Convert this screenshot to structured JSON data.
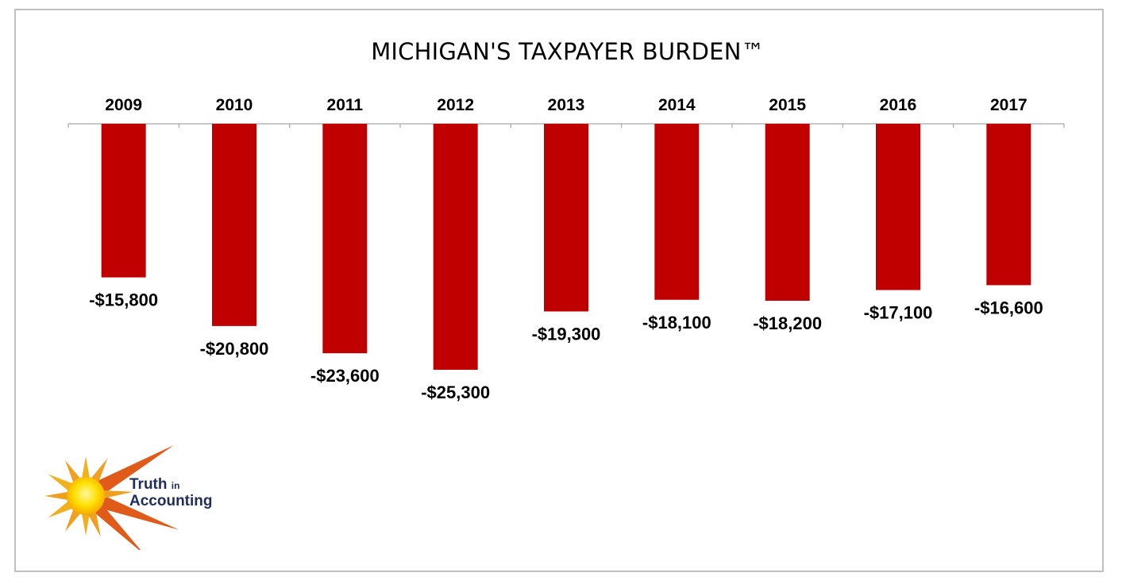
{
  "chart_data": {
    "type": "bar",
    "title": "MICHIGAN'S TAXPAYER BURDEN™",
    "categories": [
      "2009",
      "2010",
      "2011",
      "2012",
      "2013",
      "2014",
      "2015",
      "2016",
      "2017"
    ],
    "values": [
      -15800,
      -20800,
      -23600,
      -25300,
      -19300,
      -18100,
      -18200,
      -17100,
      -16600
    ],
    "data_labels": [
      "-$15,800",
      "-$20,800",
      "-$23,600",
      "-$25,300",
      "-$19,300",
      "-$18,100",
      "-$18,200",
      "-$17,100",
      "-$16,600"
    ],
    "ylim": [
      -25300,
      0
    ],
    "category_axis_position": "top",
    "grid": false,
    "legend": "none",
    "bar_color": "#c00000"
  },
  "logo": {
    "line1": "Truth",
    "line1_small": "in",
    "line2": "Accounting"
  }
}
